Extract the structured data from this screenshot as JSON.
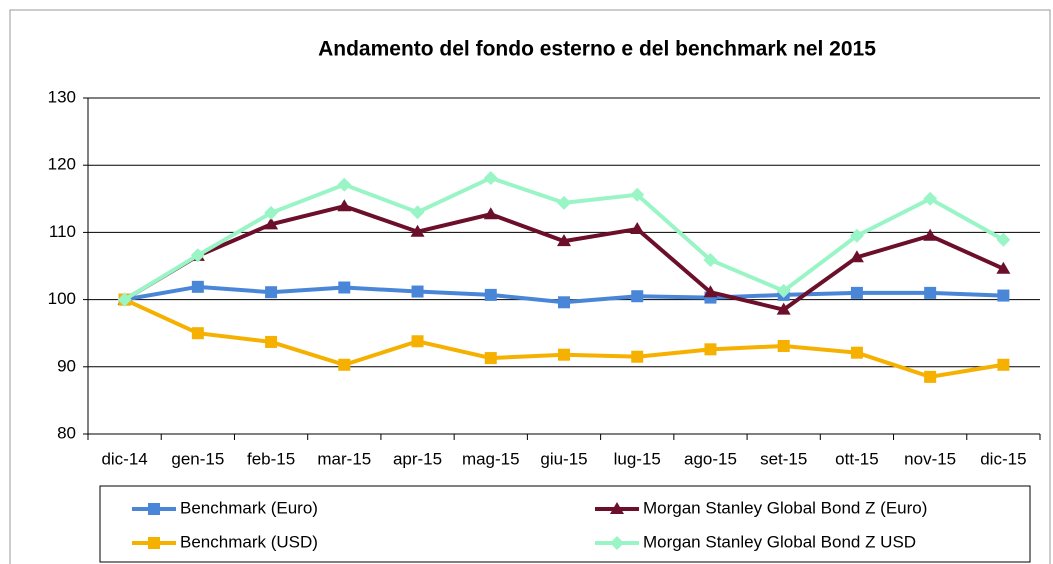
{
  "chart_data": {
    "type": "line",
    "title": "Andamento del fondo esterno e del benchmark nel 2015",
    "categories": [
      "dic-14",
      "gen-15",
      "feb-15",
      "mar-15",
      "apr-15",
      "mag-15",
      "giu-15",
      "lug-15",
      "ago-15",
      "set-15",
      "ott-15",
      "nov-15",
      "dic-15"
    ],
    "series": [
      {
        "name": "Benchmark (Euro)",
        "color": "#4a86d8",
        "marker": "square",
        "values": [
          100,
          101.9,
          101.1,
          101.8,
          101.2,
          100.7,
          99.6,
          100.5,
          100.3,
          100.7,
          101,
          101,
          100.6
        ]
      },
      {
        "name": "Morgan Stanley Global Bond Z (Euro)",
        "color": "#6b0f2a",
        "marker": "triangle",
        "values": [
          100,
          106.5,
          111.2,
          113.9,
          110.1,
          112.7,
          108.7,
          110.5,
          101.1,
          98.5,
          106.3,
          109.5,
          104.6
        ]
      },
      {
        "name": "Benchmark (USD)",
        "color": "#f5b000",
        "marker": "square",
        "values": [
          100,
          95,
          93.7,
          90.3,
          93.8,
          91.3,
          91.8,
          91.5,
          92.6,
          93.1,
          92.1,
          88.5,
          90.3
        ]
      },
      {
        "name": "Morgan Stanley Global Bond Z USD",
        "color": "#99f5c6",
        "marker": "diamond",
        "values": [
          100,
          106.6,
          112.9,
          117.1,
          113,
          118.1,
          114.4,
          115.6,
          105.9,
          101.3,
          109.5,
          115,
          108.9
        ]
      }
    ],
    "ylim": [
      80,
      130
    ],
    "yticks": [
      80,
      90,
      100,
      110,
      120,
      130
    ],
    "grid": true,
    "legend": "bottom"
  }
}
